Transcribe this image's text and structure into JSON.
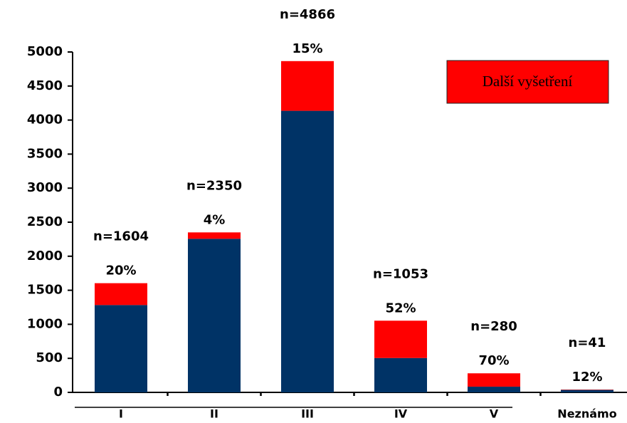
{
  "chart_data": {
    "type": "stacked_bar",
    "categories": [
      "I",
      "II",
      "III",
      "IV",
      "V",
      "Neznámo"
    ],
    "series": [
      {
        "color": "#003366",
        "values": [
          1283,
          2256,
          4136,
          505,
          84,
          36
        ]
      },
      {
        "name": "Další vyšetření",
        "color": "#ff0000",
        "values": [
          321,
          94,
          730,
          548,
          196,
          5
        ]
      }
    ],
    "total_labels": [
      "n=1604",
      "n=2350",
      "n=4866",
      "n=1053",
      "n=280",
      "n=41"
    ],
    "percent_labels": [
      "20%",
      "4%",
      "15%",
      "52%",
      "70%",
      "12%"
    ],
    "ylim": [
      0,
      5000
    ],
    "yticks": [
      0,
      500,
      1000,
      1500,
      2000,
      2500,
      3000,
      3500,
      4000,
      4500,
      5000
    ],
    "legend": "top-right",
    "grid": false
  }
}
